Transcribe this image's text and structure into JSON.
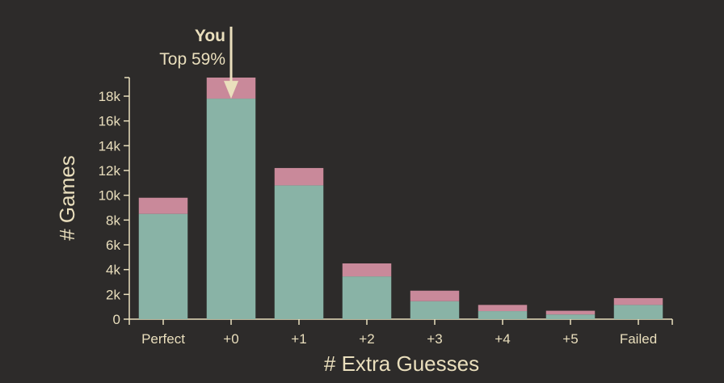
{
  "chart_data": {
    "type": "bar",
    "stacked": true,
    "categories": [
      "Perfect",
      "+0",
      "+1",
      "+2",
      "+3",
      "+4",
      "+5",
      "Failed"
    ],
    "series": [
      {
        "values": [
          8500,
          17800,
          10800,
          3450,
          1450,
          650,
          380,
          1150
        ],
        "color": "#89b3a6"
      },
      {
        "values": [
          1300,
          1700,
          1400,
          1050,
          850,
          500,
          300,
          550
        ],
        "color": "#c9899a"
      }
    ],
    "xlabel": "# Extra Guesses",
    "ylabel": "# Games",
    "ylim": [
      0,
      19500
    ],
    "yticks": [
      0,
      2000,
      4000,
      6000,
      8000,
      10000,
      12000,
      14000,
      16000,
      18000
    ],
    "ytick_labels": [
      "0",
      "2k",
      "4k",
      "6k",
      "8k",
      "10k",
      "12k",
      "14k",
      "16k",
      "18k"
    ],
    "annotation": {
      "category": "+0",
      "label": "You",
      "sublabel": "Top 59%"
    },
    "colors": {
      "background": "#2d2b2a",
      "axis": "#eadfbd"
    }
  }
}
